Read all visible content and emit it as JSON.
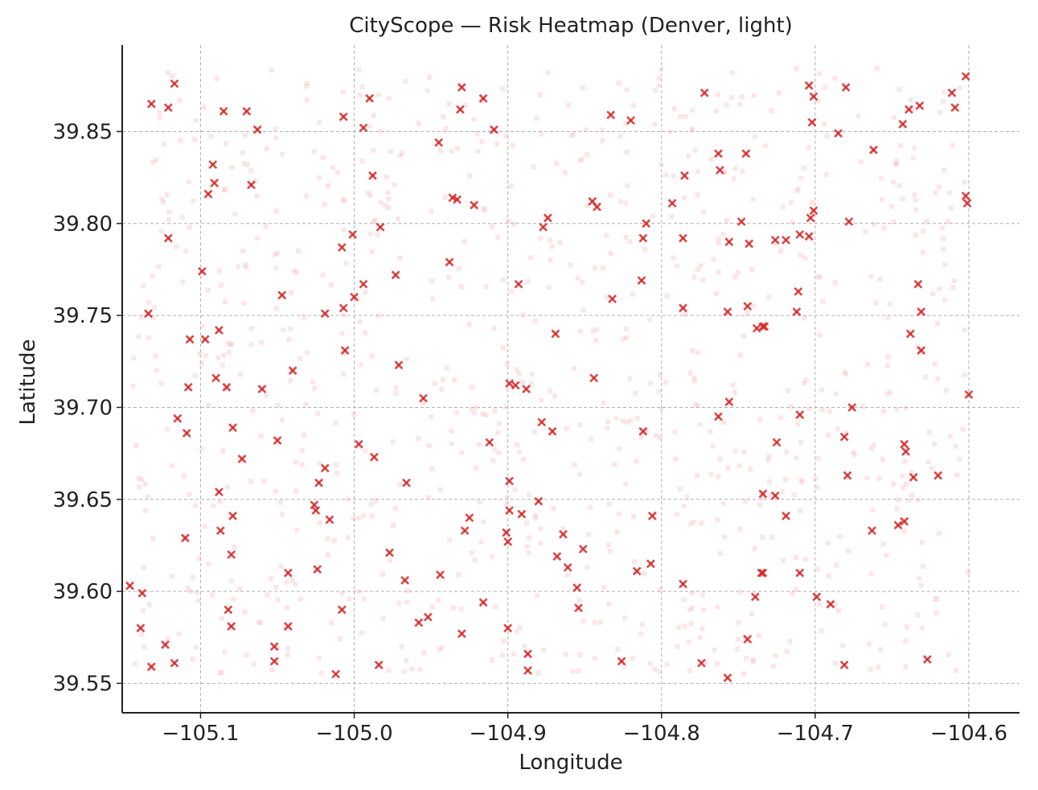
{
  "chart_data": {
    "type": "scatter",
    "title": "CityScope — Risk Heatmap (Denver, light)",
    "xlabel": "Longitude",
    "ylabel": "Latitude",
    "xlim": [
      -105.151,
      -104.567
    ],
    "ylim": [
      39.534,
      39.897
    ],
    "xticks": [
      -105.1,
      -105.0,
      -104.9,
      -104.8,
      -104.7,
      -104.6
    ],
    "xtick_labels": [
      "−105.1",
      "−105.0",
      "−104.9",
      "−104.8",
      "−104.7",
      "−104.6"
    ],
    "yticks": [
      39.55,
      39.6,
      39.65,
      39.7,
      39.75,
      39.8,
      39.85
    ],
    "ytick_labels": [
      "39.55",
      "39.60",
      "39.65",
      "39.70",
      "39.75",
      "39.80",
      "39.85"
    ],
    "grid": true,
    "colors": {
      "marker": "#d62728",
      "background_marker": "#f4b6b8",
      "grid": "#b0b0b0"
    },
    "series": [
      {
        "marker": "x",
        "points": [
          [
            -105.132,
            39.865
          ],
          [
            -105.121,
            39.863
          ],
          [
            -105.117,
            39.876
          ],
          [
            -105.085,
            39.861
          ],
          [
            -105.07,
            39.861
          ],
          [
            -105.063,
            39.851
          ],
          [
            -105.007,
            39.858
          ],
          [
            -104.99,
            39.868
          ],
          [
            -104.994,
            39.852
          ],
          [
            -104.93,
            39.874
          ],
          [
            -104.931,
            39.862
          ],
          [
            -104.916,
            39.868
          ],
          [
            -104.909,
            39.851
          ],
          [
            -104.945,
            39.844
          ],
          [
            -105.092,
            39.832
          ],
          [
            -105.091,
            39.822
          ],
          [
            -105.095,
            39.816
          ],
          [
            -105.067,
            39.821
          ],
          [
            -104.988,
            39.826
          ],
          [
            -104.936,
            39.814
          ],
          [
            -104.933,
            39.813
          ],
          [
            -104.922,
            39.81
          ],
          [
            -105.121,
            39.792
          ],
          [
            -105.099,
            39.774
          ],
          [
            -104.983,
            39.798
          ],
          [
            -105.001,
            39.794
          ],
          [
            -105.008,
            39.787
          ],
          [
            -104.973,
            39.772
          ],
          [
            -104.938,
            39.779
          ],
          [
            -104.994,
            39.767
          ],
          [
            -105.0,
            39.76
          ],
          [
            -105.047,
            39.761
          ],
          [
            -105.134,
            39.751
          ],
          [
            -105.019,
            39.751
          ],
          [
            -105.007,
            39.754
          ],
          [
            -105.088,
            39.742
          ],
          [
            -105.107,
            39.737
          ],
          [
            -105.097,
            39.737
          ],
          [
            -105.006,
            39.731
          ],
          [
            -105.04,
            39.72
          ],
          [
            -104.971,
            39.723
          ],
          [
            -105.09,
            39.716
          ],
          [
            -105.083,
            39.711
          ],
          [
            -105.108,
            39.711
          ],
          [
            -105.06,
            39.71
          ],
          [
            -104.955,
            39.705
          ],
          [
            -105.115,
            39.694
          ],
          [
            -105.079,
            39.689
          ],
          [
            -105.109,
            39.686
          ],
          [
            -105.05,
            39.682
          ],
          [
            -105.073,
            39.672
          ],
          [
            -104.997,
            39.68
          ],
          [
            -104.987,
            39.673
          ],
          [
            -105.019,
            39.667
          ],
          [
            -105.023,
            39.659
          ],
          [
            -105.088,
            39.654
          ],
          [
            -104.966,
            39.659
          ],
          [
            -105.026,
            39.647
          ],
          [
            -105.025,
            39.644
          ],
          [
            -105.079,
            39.641
          ],
          [
            -105.016,
            39.639
          ],
          [
            -105.087,
            39.633
          ],
          [
            -105.11,
            39.629
          ],
          [
            -105.08,
            39.62
          ],
          [
            -104.977,
            39.621
          ],
          [
            -105.146,
            39.603
          ],
          [
            -105.138,
            39.599
          ],
          [
            -105.043,
            39.61
          ],
          [
            -105.024,
            39.612
          ],
          [
            -104.967,
            39.606
          ],
          [
            -104.944,
            39.609
          ],
          [
            -105.082,
            39.59
          ],
          [
            -105.08,
            39.581
          ],
          [
            -105.043,
            39.581
          ],
          [
            -105.139,
            39.58
          ],
          [
            -105.008,
            39.59
          ],
          [
            -104.958,
            39.583
          ],
          [
            -104.952,
            39.586
          ],
          [
            -105.123,
            39.571
          ],
          [
            -105.052,
            39.57
          ],
          [
            -105.052,
            39.562
          ],
          [
            -105.132,
            39.559
          ],
          [
            -105.117,
            39.561
          ],
          [
            -105.012,
            39.555
          ],
          [
            -104.984,
            39.56
          ],
          [
            -104.916,
            39.594
          ],
          [
            -104.93,
            39.577
          ],
          [
            -104.9,
            39.58
          ],
          [
            -104.887,
            39.566
          ],
          [
            -104.887,
            39.557
          ],
          [
            -104.899,
            39.66
          ],
          [
            -104.899,
            39.644
          ],
          [
            -104.901,
            39.632
          ],
          [
            -104.9,
            39.627
          ],
          [
            -104.891,
            39.642
          ],
          [
            -104.88,
            39.649
          ],
          [
            -104.925,
            39.64
          ],
          [
            -104.928,
            39.633
          ],
          [
            -104.912,
            39.681
          ],
          [
            -104.878,
            39.692
          ],
          [
            -104.871,
            39.687
          ],
          [
            -104.888,
            39.71
          ],
          [
            -104.899,
            39.713
          ],
          [
            -104.895,
            39.712
          ],
          [
            -104.869,
            39.74
          ],
          [
            -104.844,
            39.716
          ],
          [
            -104.832,
            39.759
          ],
          [
            -104.813,
            39.769
          ],
          [
            -104.893,
            39.767
          ],
          [
            -104.874,
            39.803
          ],
          [
            -104.877,
            39.798
          ],
          [
            -104.845,
            39.812
          ],
          [
            -104.842,
            39.809
          ],
          [
            -104.812,
            39.792
          ],
          [
            -104.81,
            39.8
          ],
          [
            -104.833,
            39.859
          ],
          [
            -104.82,
            39.856
          ],
          [
            -104.785,
            39.826
          ],
          [
            -104.793,
            39.811
          ],
          [
            -104.786,
            39.792
          ],
          [
            -104.772,
            39.871
          ],
          [
            -104.763,
            39.838
          ],
          [
            -104.762,
            39.829
          ],
          [
            -104.745,
            39.838
          ],
          [
            -104.748,
            39.801
          ],
          [
            -104.756,
            39.79
          ],
          [
            -104.743,
            39.789
          ],
          [
            -104.786,
            39.754
          ],
          [
            -104.757,
            39.752
          ],
          [
            -104.744,
            39.755
          ],
          [
            -104.738,
            39.743
          ],
          [
            -104.734,
            39.744
          ],
          [
            -104.733,
            39.744
          ],
          [
            -104.763,
            39.695
          ],
          [
            -104.756,
            39.703
          ],
          [
            -104.725,
            39.681
          ],
          [
            -104.71,
            39.696
          ],
          [
            -104.734,
            39.653
          ],
          [
            -104.726,
            39.652
          ],
          [
            -104.719,
            39.641
          ],
          [
            -104.812,
            39.687
          ],
          [
            -104.806,
            39.641
          ],
          [
            -104.807,
            39.615
          ],
          [
            -104.816,
            39.611
          ],
          [
            -104.786,
            39.604
          ],
          [
            -104.774,
            39.561
          ],
          [
            -104.757,
            39.553
          ],
          [
            -104.826,
            39.562
          ],
          [
            -104.864,
            39.631
          ],
          [
            -104.868,
            39.619
          ],
          [
            -104.861,
            39.613
          ],
          [
            -104.851,
            39.623
          ],
          [
            -104.855,
            39.602
          ],
          [
            -104.854,
            39.591
          ],
          [
            -104.734,
            39.61
          ],
          [
            -104.735,
            39.61
          ],
          [
            -104.739,
            39.597
          ],
          [
            -104.71,
            39.61
          ],
          [
            -104.699,
            39.597
          ],
          [
            -104.69,
            39.593
          ],
          [
            -104.744,
            39.574
          ],
          [
            -104.681,
            39.56
          ],
          [
            -104.726,
            39.791
          ],
          [
            -104.719,
            39.791
          ],
          [
            -104.71,
            39.794
          ],
          [
            -104.701,
            39.807
          ],
          [
            -104.703,
            39.803
          ],
          [
            -104.704,
            39.793
          ],
          [
            -104.711,
            39.763
          ],
          [
            -104.712,
            39.752
          ],
          [
            -104.704,
            39.875
          ],
          [
            -104.701,
            39.869
          ],
          [
            -104.702,
            39.855
          ],
          [
            -104.685,
            39.849
          ],
          [
            -104.68,
            39.874
          ],
          [
            -104.678,
            39.801
          ],
          [
            -104.662,
            39.84
          ],
          [
            -104.676,
            39.7
          ],
          [
            -104.681,
            39.684
          ],
          [
            -104.679,
            39.663
          ],
          [
            -104.663,
            39.633
          ],
          [
            -104.646,
            39.636
          ],
          [
            -104.642,
            39.638
          ],
          [
            -104.642,
            39.68
          ],
          [
            -104.641,
            39.676
          ],
          [
            -104.636,
            39.662
          ],
          [
            -104.62,
            39.663
          ],
          [
            -104.638,
            39.74
          ],
          [
            -104.631,
            39.752
          ],
          [
            -104.633,
            39.767
          ],
          [
            -104.631,
            39.731
          ],
          [
            -104.643,
            39.854
          ],
          [
            -104.639,
            39.862
          ],
          [
            -104.632,
            39.864
          ],
          [
            -104.611,
            39.871
          ],
          [
            -104.609,
            39.863
          ],
          [
            -104.602,
            39.88
          ],
          [
            -104.602,
            39.815
          ],
          [
            -104.601,
            39.811
          ],
          [
            -104.6,
            39.707
          ],
          [
            -104.627,
            39.563
          ]
        ]
      }
    ],
    "background_points_note": ""
  }
}
